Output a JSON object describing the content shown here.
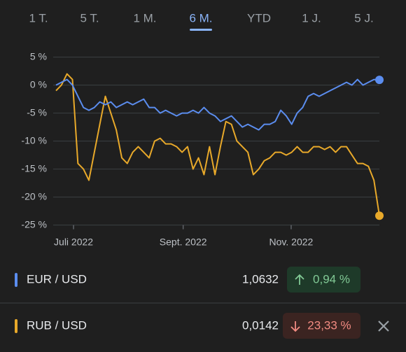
{
  "tabs": [
    "1 T.",
    "5 T.",
    "1 M.",
    "6 M.",
    "YTD",
    "1 J.",
    "5 J."
  ],
  "active_tab": 3,
  "chart_data": {
    "type": "line",
    "x": [
      0,
      1,
      2,
      3,
      4,
      5,
      6,
      7,
      8,
      9,
      10,
      11,
      12,
      13,
      14,
      15,
      16,
      17,
      18,
      19,
      20,
      21,
      22,
      23,
      24,
      25,
      26,
      27,
      28,
      29,
      30,
      31,
      32,
      33,
      34,
      35,
      36,
      37,
      38,
      39,
      40,
      41,
      42,
      43,
      44,
      45,
      46,
      47,
      48,
      49,
      50,
      51,
      52,
      53,
      54,
      55,
      56,
      57,
      58,
      59
    ],
    "xlim": [
      0,
      59
    ],
    "xticks": [
      {
        "value": 3.2,
        "label": "Juli 2022"
      },
      {
        "value": 23.2,
        "label": "Sept. 2022"
      },
      {
        "value": 42.9,
        "label": "Nov. 2022"
      }
    ],
    "ylim": [
      -25,
      5
    ],
    "yticks": [
      {
        "value": 5,
        "label": "5 %"
      },
      {
        "value": 0,
        "label": "0 %"
      },
      {
        "value": -5,
        "label": "-5 %"
      },
      {
        "value": -10,
        "label": "-10 %"
      },
      {
        "value": -15,
        "label": "-15 %"
      },
      {
        "value": -20,
        "label": "-20 %"
      },
      {
        "value": -25,
        "label": "-25 %"
      }
    ],
    "grid": true,
    "series": [
      {
        "name": "EUR / USD",
        "color": "#5b8def",
        "price": "1,0632",
        "change": "0,94 %",
        "trend": "up",
        "values": [
          0,
          0.5,
          1,
          0,
          -2,
          -4,
          -4.5,
          -4,
          -3,
          -3.5,
          -3,
          -4,
          -3.5,
          -3,
          -3.5,
          -3,
          -2.5,
          -4,
          -4,
          -5,
          -4.5,
          -5,
          -5.5,
          -5,
          -5,
          -4.5,
          -5,
          -4,
          -5,
          -5.5,
          -6.5,
          -6,
          -5.5,
          -6.5,
          -7.5,
          -7,
          -7.5,
          -8,
          -7,
          -7,
          -6.5,
          -4.5,
          -5.5,
          -7,
          -5,
          -4,
          -2,
          -1.5,
          -2,
          -1.5,
          -1,
          -0.5,
          0,
          0.5,
          0,
          1,
          0,
          0.5,
          1,
          0.94
        ]
      },
      {
        "name": "RUB / USD",
        "color": "#e8a92a",
        "price": "0,0142",
        "change": "23,33 %",
        "trend": "down",
        "values": [
          -1,
          0,
          2,
          1,
          -14,
          -15,
          -17,
          -12,
          -7,
          -2,
          -5,
          -8,
          -13,
          -14,
          -12,
          -11,
          -12,
          -13,
          -10,
          -9.5,
          -10.5,
          -10.5,
          -11,
          -12,
          -11,
          -15,
          -13,
          -16,
          -11,
          -16,
          -11,
          -6.5,
          -7,
          -10,
          -11,
          -12,
          -16,
          -15,
          -13.5,
          -13,
          -12,
          -12,
          -12.5,
          -12,
          -11,
          -12,
          -12,
          -11,
          -11,
          -11.5,
          -11,
          -12,
          -11,
          -11,
          -12.5,
          -14,
          -14,
          -14.5,
          -17,
          -23.33
        ]
      }
    ]
  }
}
